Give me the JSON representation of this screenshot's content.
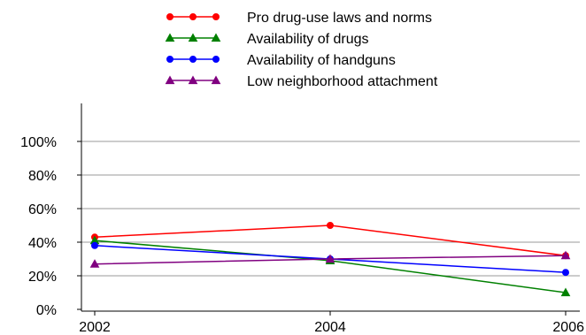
{
  "chart_data": {
    "type": "line",
    "categories": [
      "2002",
      "2004",
      "2006"
    ],
    "ylim": [
      0,
      100
    ],
    "yticks": [
      0,
      20,
      40,
      60,
      80,
      100
    ],
    "ytick_labels": [
      "0%",
      "20%",
      "40%",
      "60%",
      "80%",
      "100%"
    ],
    "grid": true,
    "legend": "top",
    "series": [
      {
        "name": "Pro drug-use laws and norms",
        "color": "#ff0000",
        "marker": "circle",
        "values": [
          43,
          50,
          32
        ]
      },
      {
        "name": "Availability of drugs",
        "color": "#008000",
        "marker": "triangle",
        "values": [
          41,
          29,
          10
        ]
      },
      {
        "name": "Availability of handguns",
        "color": "#0000ff",
        "marker": "circle",
        "values": [
          38,
          30,
          22
        ]
      },
      {
        "name": "Low neighborhood attachment",
        "color": "#800080",
        "marker": "triangle",
        "values": [
          27,
          30,
          32
        ]
      }
    ]
  }
}
